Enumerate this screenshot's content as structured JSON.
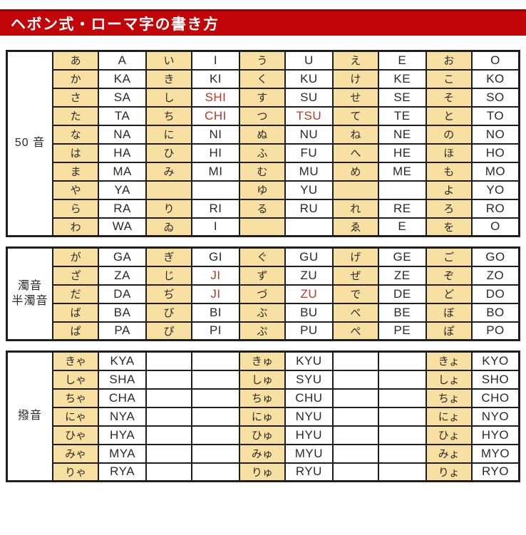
{
  "title": "ヘボン式・ローマ字の書き方",
  "colors": {
    "header_bg": "#c20508",
    "header_border": "#8e0407",
    "title_text": "#ffffff",
    "cell_tan": "#f8e0a2",
    "red_text": "#b23b2a",
    "grid": "#1e1e1e"
  },
  "tables": [
    {
      "id": "gojuon",
      "label_lines": [
        "50 音"
      ],
      "rows": [
        [
          [
            "あ",
            1,
            0
          ],
          [
            "A",
            0,
            0
          ],
          [
            "い",
            1,
            0
          ],
          [
            "I",
            0,
            0
          ],
          [
            "う",
            1,
            0
          ],
          [
            "U",
            0,
            0
          ],
          [
            "え",
            1,
            0
          ],
          [
            "E",
            0,
            0
          ],
          [
            "お",
            1,
            0
          ],
          [
            "O",
            0,
            0
          ]
        ],
        [
          [
            "か",
            1,
            0
          ],
          [
            "KA",
            0,
            0
          ],
          [
            "き",
            1,
            0
          ],
          [
            "KI",
            0,
            0
          ],
          [
            "く",
            1,
            0
          ],
          [
            "KU",
            0,
            0
          ],
          [
            "け",
            1,
            0
          ],
          [
            "KE",
            0,
            0
          ],
          [
            "こ",
            1,
            0
          ],
          [
            "KO",
            0,
            0
          ]
        ],
        [
          [
            "さ",
            1,
            0
          ],
          [
            "SA",
            0,
            0
          ],
          [
            "し",
            1,
            0
          ],
          [
            "SHI",
            0,
            1
          ],
          [
            "す",
            1,
            0
          ],
          [
            "SU",
            0,
            0
          ],
          [
            "せ",
            1,
            0
          ],
          [
            "SE",
            0,
            0
          ],
          [
            "そ",
            1,
            0
          ],
          [
            "SO",
            0,
            0
          ]
        ],
        [
          [
            "た",
            1,
            0
          ],
          [
            "TA",
            0,
            0
          ],
          [
            "ち",
            1,
            0
          ],
          [
            "CHI",
            0,
            1
          ],
          [
            "つ",
            1,
            0
          ],
          [
            "TSU",
            0,
            1
          ],
          [
            "て",
            1,
            0
          ],
          [
            "TE",
            0,
            0
          ],
          [
            "と",
            1,
            0
          ],
          [
            "TO",
            0,
            0
          ]
        ],
        [
          [
            "な",
            1,
            0
          ],
          [
            "NA",
            0,
            0
          ],
          [
            "に",
            1,
            0
          ],
          [
            "NI",
            0,
            0
          ],
          [
            "ぬ",
            1,
            0
          ],
          [
            "NU",
            0,
            0
          ],
          [
            "ね",
            1,
            0
          ],
          [
            "NE",
            0,
            0
          ],
          [
            "の",
            1,
            0
          ],
          [
            "NO",
            0,
            0
          ]
        ],
        [
          [
            "は",
            1,
            0
          ],
          [
            "HA",
            0,
            0
          ],
          [
            "ひ",
            1,
            0
          ],
          [
            "HI",
            0,
            0
          ],
          [
            "ふ",
            1,
            0
          ],
          [
            "FU",
            0,
            0
          ],
          [
            "へ",
            1,
            0
          ],
          [
            "HE",
            0,
            0
          ],
          [
            "ほ",
            1,
            0
          ],
          [
            "HO",
            0,
            0
          ]
        ],
        [
          [
            "ま",
            1,
            0
          ],
          [
            "MA",
            0,
            0
          ],
          [
            "み",
            1,
            0
          ],
          [
            "MI",
            0,
            0
          ],
          [
            "む",
            1,
            0
          ],
          [
            "MU",
            0,
            0
          ],
          [
            "め",
            1,
            0
          ],
          [
            "ME",
            0,
            0
          ],
          [
            "も",
            1,
            0
          ],
          [
            "MO",
            0,
            0
          ]
        ],
        [
          [
            "や",
            1,
            0
          ],
          [
            "YA",
            0,
            0
          ],
          [
            "",
            1,
            0
          ],
          [
            "",
            0,
            0
          ],
          [
            "ゆ",
            1,
            0
          ],
          [
            "YU",
            0,
            0
          ],
          [
            "",
            1,
            0
          ],
          [
            "",
            0,
            0
          ],
          [
            "よ",
            1,
            0
          ],
          [
            "YO",
            0,
            0
          ]
        ],
        [
          [
            "ら",
            1,
            0
          ],
          [
            "RA",
            0,
            0
          ],
          [
            "り",
            1,
            0
          ],
          [
            "RI",
            0,
            0
          ],
          [
            "る",
            1,
            0
          ],
          [
            "RU",
            0,
            0
          ],
          [
            "れ",
            1,
            0
          ],
          [
            "RE",
            0,
            0
          ],
          [
            "ろ",
            1,
            0
          ],
          [
            "RO",
            0,
            0
          ]
        ],
        [
          [
            "わ",
            1,
            0
          ],
          [
            "WA",
            0,
            0
          ],
          [
            "ゐ",
            1,
            0
          ],
          [
            "I",
            0,
            0
          ],
          [
            "",
            1,
            0
          ],
          [
            "",
            0,
            0
          ],
          [
            "ゑ",
            1,
            0
          ],
          [
            "E",
            0,
            0
          ],
          [
            "を",
            1,
            0
          ],
          [
            "O",
            0,
            0
          ]
        ]
      ]
    },
    {
      "id": "dakuon-handakuon",
      "label_lines": [
        "濁音",
        "半濁音"
      ],
      "rows": [
        [
          [
            "が",
            1,
            0
          ],
          [
            "GA",
            0,
            0
          ],
          [
            "ぎ",
            1,
            0
          ],
          [
            "GI",
            0,
            0
          ],
          [
            "ぐ",
            1,
            0
          ],
          [
            "GU",
            0,
            0
          ],
          [
            "げ",
            1,
            0
          ],
          [
            "GE",
            0,
            0
          ],
          [
            "ご",
            1,
            0
          ],
          [
            "GO",
            0,
            0
          ]
        ],
        [
          [
            "ざ",
            1,
            0
          ],
          [
            "ZA",
            0,
            0
          ],
          [
            "じ",
            1,
            0
          ],
          [
            "JI",
            0,
            1
          ],
          [
            "ず",
            1,
            0
          ],
          [
            "ZU",
            0,
            0
          ],
          [
            "ぜ",
            1,
            0
          ],
          [
            "ZE",
            0,
            0
          ],
          [
            "ぞ",
            1,
            0
          ],
          [
            "ZO",
            0,
            0
          ]
        ],
        [
          [
            "だ",
            1,
            0
          ],
          [
            "DA",
            0,
            0
          ],
          [
            "ぢ",
            1,
            0
          ],
          [
            "JI",
            0,
            1
          ],
          [
            "づ",
            1,
            0
          ],
          [
            "ZU",
            0,
            1
          ],
          [
            "で",
            1,
            0
          ],
          [
            "DE",
            0,
            0
          ],
          [
            "ど",
            1,
            0
          ],
          [
            "DO",
            0,
            0
          ]
        ],
        [
          [
            "ば",
            1,
            0
          ],
          [
            "BA",
            0,
            0
          ],
          [
            "び",
            1,
            0
          ],
          [
            "BI",
            0,
            0
          ],
          [
            "ぶ",
            1,
            0
          ],
          [
            "BU",
            0,
            0
          ],
          [
            "べ",
            1,
            0
          ],
          [
            "BE",
            0,
            0
          ],
          [
            "ぼ",
            1,
            0
          ],
          [
            "BO",
            0,
            0
          ]
        ],
        [
          [
            "ぱ",
            1,
            0
          ],
          [
            "PA",
            0,
            0
          ],
          [
            "ぴ",
            1,
            0
          ],
          [
            "PI",
            0,
            0
          ],
          [
            "ぷ",
            1,
            0
          ],
          [
            "PU",
            0,
            0
          ],
          [
            "ぺ",
            1,
            0
          ],
          [
            "PE",
            0,
            0
          ],
          [
            "ぽ",
            1,
            0
          ],
          [
            "PO",
            0,
            0
          ]
        ]
      ]
    },
    {
      "id": "hatsuon",
      "label_lines": [
        "撥音"
      ],
      "rows": [
        [
          [
            "きゃ",
            1,
            0
          ],
          [
            "KYA",
            0,
            0
          ],
          [
            "",
            0,
            0
          ],
          [
            "",
            0,
            0
          ],
          [
            "きゅ",
            1,
            0
          ],
          [
            "KYU",
            0,
            0
          ],
          [
            "",
            0,
            0
          ],
          [
            "",
            0,
            0
          ],
          [
            "きょ",
            1,
            0
          ],
          [
            "KYO",
            0,
            0
          ]
        ],
        [
          [
            "しゃ",
            1,
            0
          ],
          [
            "SHA",
            0,
            0
          ],
          [
            "",
            0,
            0
          ],
          [
            "",
            0,
            0
          ],
          [
            "しゅ",
            1,
            0
          ],
          [
            "SYU",
            0,
            0
          ],
          [
            "",
            0,
            0
          ],
          [
            "",
            0,
            0
          ],
          [
            "しょ",
            1,
            0
          ],
          [
            "SHO",
            0,
            0
          ]
        ],
        [
          [
            "ちゃ",
            1,
            0
          ],
          [
            "CHA",
            0,
            0
          ],
          [
            "",
            0,
            0
          ],
          [
            "",
            0,
            0
          ],
          [
            "ちゅ",
            1,
            0
          ],
          [
            "CHU",
            0,
            0
          ],
          [
            "",
            0,
            0
          ],
          [
            "",
            0,
            0
          ],
          [
            "ちょ",
            1,
            0
          ],
          [
            "CHO",
            0,
            0
          ]
        ],
        [
          [
            "にゃ",
            1,
            0
          ],
          [
            "NYA",
            0,
            0
          ],
          [
            "",
            0,
            0
          ],
          [
            "",
            0,
            0
          ],
          [
            "にゅ",
            1,
            0
          ],
          [
            "NYU",
            0,
            0
          ],
          [
            "",
            0,
            0
          ],
          [
            "",
            0,
            0
          ],
          [
            "にょ",
            1,
            0
          ],
          [
            "NYO",
            0,
            0
          ]
        ],
        [
          [
            "ひゃ",
            1,
            0
          ],
          [
            "HYA",
            0,
            0
          ],
          [
            "",
            0,
            0
          ],
          [
            "",
            0,
            0
          ],
          [
            "ひゅ",
            1,
            0
          ],
          [
            "HYU",
            0,
            0
          ],
          [
            "",
            0,
            0
          ],
          [
            "",
            0,
            0
          ],
          [
            "ひょ",
            1,
            0
          ],
          [
            "HYO",
            0,
            0
          ]
        ],
        [
          [
            "みゃ",
            1,
            0
          ],
          [
            "MYA",
            0,
            0
          ],
          [
            "",
            0,
            0
          ],
          [
            "",
            0,
            0
          ],
          [
            "みゅ",
            1,
            0
          ],
          [
            "MYU",
            0,
            0
          ],
          [
            "",
            0,
            0
          ],
          [
            "",
            0,
            0
          ],
          [
            "みょ",
            1,
            0
          ],
          [
            "MYO",
            0,
            0
          ]
        ],
        [
          [
            "りゃ",
            1,
            0
          ],
          [
            "RYA",
            0,
            0
          ],
          [
            "",
            0,
            0
          ],
          [
            "",
            0,
            0
          ],
          [
            "りゅ",
            1,
            0
          ],
          [
            "RYU",
            0,
            0
          ],
          [
            "",
            0,
            0
          ],
          [
            "",
            0,
            0
          ],
          [
            "りょ",
            1,
            0
          ],
          [
            "RYO",
            0,
            0
          ]
        ]
      ]
    }
  ]
}
